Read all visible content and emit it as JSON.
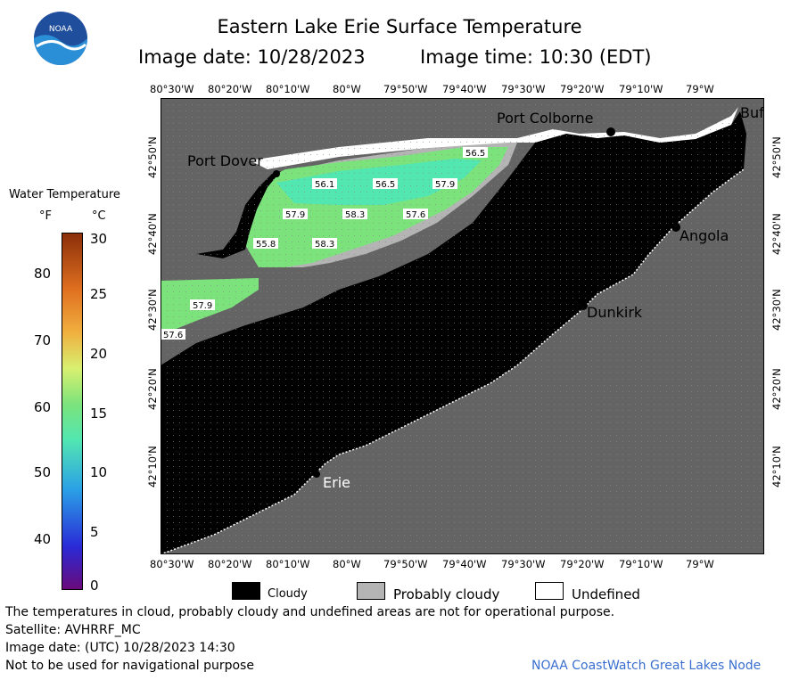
{
  "header": {
    "logo_text": "NOAA",
    "title": "Eastern Lake Erie Surface Temperature",
    "image_date": "Image date: 10/28/2023",
    "image_time": "Image time: 10:30 (EDT)"
  },
  "map": {
    "lon_labels": [
      "80°30'W",
      "80°20'W",
      "80°10'W",
      "80°W",
      "79°50'W",
      "79°40'W",
      "79°30'W",
      "79°20'W",
      "79°10'W",
      "79°W"
    ],
    "lat_labels": [
      "42°50'N",
      "42°40'N",
      "42°30'N",
      "42°20'N",
      "42°10'N"
    ],
    "places": {
      "port_colborne": "Port Colborne",
      "buffalo": "Buf",
      "port_dover": "Port Dover",
      "angola": "Angola",
      "dunkirk": "Dunkirk",
      "erie": "Erie"
    },
    "temp_labels": [
      "56.5",
      "56.1",
      "56.5",
      "57.9",
      "57.9",
      "58.3",
      "57.6",
      "55.8",
      "58.3",
      "57.9",
      "57.6"
    ],
    "colors": {
      "cloud": "#000000",
      "land": "#646464",
      "probably_cloudy": "#b4b4b4",
      "undefined": "#ffffff",
      "water_warm": "#7ce37c",
      "water_cool": "#52e6b1"
    }
  },
  "colorbar": {
    "title": "Water Temperature",
    "unit_f": "°F",
    "unit_c": "°C",
    "f_ticks": [
      "80",
      "70",
      "60",
      "50",
      "40"
    ],
    "c_ticks": [
      "30",
      "25",
      "20",
      "15",
      "10",
      "5",
      "0"
    ]
  },
  "legend": {
    "cloudy": "Cloudy",
    "probably_cloudy": "Probably cloudy",
    "undefined": "Undefined"
  },
  "footer": {
    "disclaimer": "The temperatures in cloud, probably cloudy and undefined areas are not for operational purpose.",
    "satellite": "Satellite: AVHRRF_MC",
    "image_date_utc": "Image date: (UTC) 10/28/2023  14:30",
    "nav_warning": "Not to be used for navigational purpose",
    "credit": "NOAA CoastWatch Great Lakes Node"
  }
}
